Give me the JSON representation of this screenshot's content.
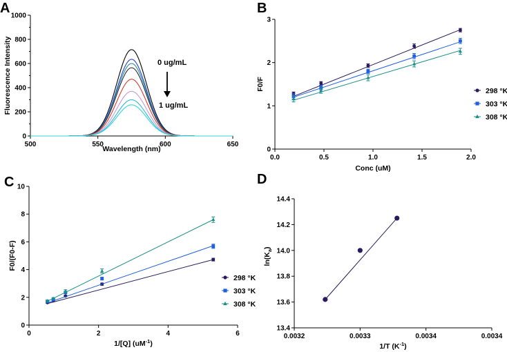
{
  "chart_data": [
    {
      "panel": "A",
      "type": "line",
      "title": "",
      "xlabel": "Wavelength (nm)",
      "ylabel": "Fluorescence Intensity",
      "xlim": [
        500,
        650
      ],
      "ylim": [
        0,
        1000
      ],
      "x_ticks": [
        "500",
        "550",
        "600",
        "650"
      ],
      "y_ticks": [
        "0",
        "200",
        "400",
        "600",
        "800",
        "1000"
      ],
      "peak_center": 575,
      "peak_width": 11,
      "series": [
        {
          "name": "0 ug/mL",
          "peak": 715,
          "color": "#000000"
        },
        {
          "name": "",
          "peak": 635,
          "color": "#1f3fd1"
        },
        {
          "name": "",
          "peak": 600,
          "color": "#2a8fa0"
        },
        {
          "name": "",
          "peak": 565,
          "color": "#2b2b2b"
        },
        {
          "name": "",
          "peak": 470,
          "color": "#e0392b"
        },
        {
          "name": "",
          "peak": 370,
          "color": "#c896e0"
        },
        {
          "name": "",
          "peak": 300,
          "color": "#2fb8e0"
        },
        {
          "name": "1 ug/mL",
          "peak": 258,
          "color": "#2fd6d6"
        }
      ],
      "annotations": {
        "top": "0 ug/mL",
        "bottom": "1 ug/mL"
      }
    },
    {
      "panel": "B",
      "type": "scatter",
      "title": "",
      "xlabel": "Conc (uM)",
      "ylabel": "F0/F",
      "xlim": [
        0,
        2
      ],
      "ylim": [
        0,
        3
      ],
      "x_ticks": [
        "0.0",
        "0.5",
        "1.0",
        "1.5",
        "2.0"
      ],
      "y_ticks": [
        "0",
        "1",
        "2",
        "3"
      ],
      "x": [
        0.19,
        0.47,
        0.95,
        1.42,
        1.89
      ],
      "series": [
        {
          "name": "298 °K",
          "marker": "circle",
          "color": "#2a1a5e",
          "values": [
            1.28,
            1.52,
            1.93,
            2.38,
            2.75
          ],
          "errors": [
            0.04,
            0.04,
            0.04,
            0.05,
            0.04
          ],
          "fit": [
            1.22,
            2.76
          ]
        },
        {
          "name": "303 °K",
          "marker": "square",
          "color": "#1f5fe0",
          "values": [
            1.22,
            1.42,
            1.8,
            2.15,
            2.5
          ],
          "errors": [
            0.06,
            0.05,
            0.05,
            0.06,
            0.06
          ],
          "fit": [
            1.2,
            2.48
          ]
        },
        {
          "name": "308 °K",
          "marker": "triangle",
          "color": "#1a8f8a",
          "values": [
            1.16,
            1.35,
            1.65,
            1.97,
            2.26
          ],
          "errors": [
            0.07,
            0.06,
            0.07,
            0.07,
            0.07
          ],
          "fit": [
            1.13,
            2.28
          ]
        }
      ]
    },
    {
      "panel": "C",
      "type": "scatter",
      "title": "",
      "xlabel_main": "1/[Q] (uM",
      "xlabel_sup": "-1",
      "xlabel_end": ")",
      "ylabel": "F0/(F0-F)",
      "xlim": [
        0,
        6
      ],
      "ylim": [
        0,
        10
      ],
      "x_ticks": [
        "0",
        "2",
        "4",
        "6"
      ],
      "y_ticks": [
        "0",
        "2",
        "4",
        "6",
        "8",
        "10"
      ],
      "x": [
        0.53,
        0.7,
        1.05,
        2.1,
        5.3
      ],
      "series": [
        {
          "name": "298 °K",
          "marker": "circle",
          "color": "#2a1a5e",
          "values": [
            1.62,
            1.75,
            2.1,
            2.95,
            4.72
          ],
          "errors": [
            0.05,
            0.05,
            0.05,
            0.08,
            0.1
          ],
          "fit": [
            1.55,
            4.72
          ]
        },
        {
          "name": "303 °K",
          "marker": "square",
          "color": "#1f5fe0",
          "values": [
            1.7,
            1.85,
            2.35,
            3.35,
            5.68
          ],
          "errors": [
            0.05,
            0.05,
            0.08,
            0.1,
            0.15
          ],
          "fit": [
            1.6,
            5.72
          ]
        },
        {
          "name": "308 °K",
          "marker": "triangle",
          "color": "#1a8f8a",
          "values": [
            1.75,
            1.92,
            2.45,
            3.9,
            7.6
          ],
          "errors": [
            0.06,
            0.06,
            0.1,
            0.15,
            0.2
          ],
          "fit": [
            1.72,
            7.6
          ]
        }
      ]
    },
    {
      "panel": "D",
      "type": "scatter",
      "title": "",
      "xlabel_main": "1/T (K",
      "xlabel_sup": "-1",
      "xlabel_end": ")",
      "ylabel_main": "ln(K",
      "ylabel_sub": "a",
      "ylabel_end": ")",
      "xlim": [
        0.0032,
        0.0035
      ],
      "ylim": [
        13.4,
        14.4
      ],
      "x_ticks": [
        "0.0032",
        "0.0033",
        "0.0034",
        "0.0034"
      ],
      "y_ticks": [
        "13.4",
        "13.6",
        "13.8",
        "14.0",
        "14.2",
        "14.4"
      ],
      "x": [
        0.003247,
        0.0033,
        0.003356
      ],
      "values": [
        13.62,
        14.0,
        14.25
      ],
      "color": "#2a1a5e",
      "fit": [
        13.62,
        14.25
      ]
    }
  ]
}
